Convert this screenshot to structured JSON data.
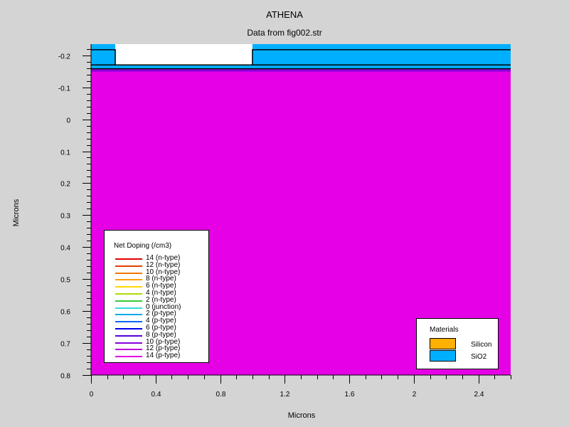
{
  "colors": {
    "silicon": "#ffb000",
    "sio2": "#00b0ff",
    "doping_fill": "#e600e6",
    "background": "#d4d4d4"
  },
  "chart_data": {
    "type": "cross-section",
    "title": "ATHENA",
    "subtitle": "Data from fig002.str",
    "xlabel": "Microns",
    "ylabel": "Microns",
    "xlim": [
      0,
      2.6
    ],
    "ylim": [
      -0.235,
      0.8
    ],
    "y_inverted": true,
    "x_ticks": [
      0,
      0.4,
      0.8,
      1.2,
      1.6,
      2,
      2.4
    ],
    "x_tick_labels": [
      "0",
      "0.4",
      "0.8",
      "1.2",
      "1.6",
      "2",
      "2.4"
    ],
    "y_ticks": [
      -0.2,
      -0.1,
      0,
      0.1,
      0.2,
      0.3,
      0.4,
      0.5,
      0.6,
      0.7,
      0.8
    ],
    "y_tick_labels": [
      "-0.2",
      "-0.1",
      "0",
      "0.1",
      "0.2",
      "0.3",
      "0.4",
      "0.5",
      "0.6",
      "0.7",
      "0.8"
    ],
    "regions": [
      {
        "material": "SiO2",
        "kind": "mask",
        "x": [
          0,
          0.15
        ],
        "y": [
          -0.235,
          -0.17
        ]
      },
      {
        "material": "SiO2",
        "kind": "mask",
        "x": [
          1.0,
          2.6
        ],
        "y": [
          -0.235,
          -0.17
        ]
      },
      {
        "material": "SiO2",
        "kind": "layer",
        "x": [
          0,
          2.6
        ],
        "y": [
          -0.17,
          -0.158
        ]
      },
      {
        "material": "Silicon",
        "kind": "substrate",
        "x": [
          0,
          2.6
        ],
        "y": [
          -0.158,
          0.8
        ],
        "doping": "14 (p-type)"
      }
    ],
    "doping_legend": {
      "title": "Net Doping (/cm3)",
      "entries": [
        {
          "label": "14 (n-type)",
          "color": "#e60000"
        },
        {
          "label": "12 (n-type)",
          "color": "#e64000"
        },
        {
          "label": "10 (n-type)",
          "color": "#f07800"
        },
        {
          "label": "8 (n-type)",
          "color": "#ffa000"
        },
        {
          "label": "6 (n-type)",
          "color": "#ffd700"
        },
        {
          "label": "4 (n-type)",
          "color": "#aadd00"
        },
        {
          "label": "2 (n-type)",
          "color": "#33cc33"
        },
        {
          "label": "0 (junction)",
          "color": "#33dddd"
        },
        {
          "label": "2 (p-type)",
          "color": "#00aaee"
        },
        {
          "label": "4 (p-type)",
          "color": "#0066ff"
        },
        {
          "label": "6 (p-type)",
          "color": "#0000ee"
        },
        {
          "label": "8 (p-type)",
          "color": "#5500dd"
        },
        {
          "label": "10 (p-type)",
          "color": "#8800dd"
        },
        {
          "label": "12 (p-type)",
          "color": "#bb00dd"
        },
        {
          "label": "14 (p-type)",
          "color": "#e600e6"
        }
      ]
    },
    "materials_legend": {
      "title": "Materials",
      "entries": [
        {
          "label": "Silicon",
          "color": "#ffb000"
        },
        {
          "label": "SiO2",
          "color": "#00b0ff"
        }
      ]
    }
  }
}
